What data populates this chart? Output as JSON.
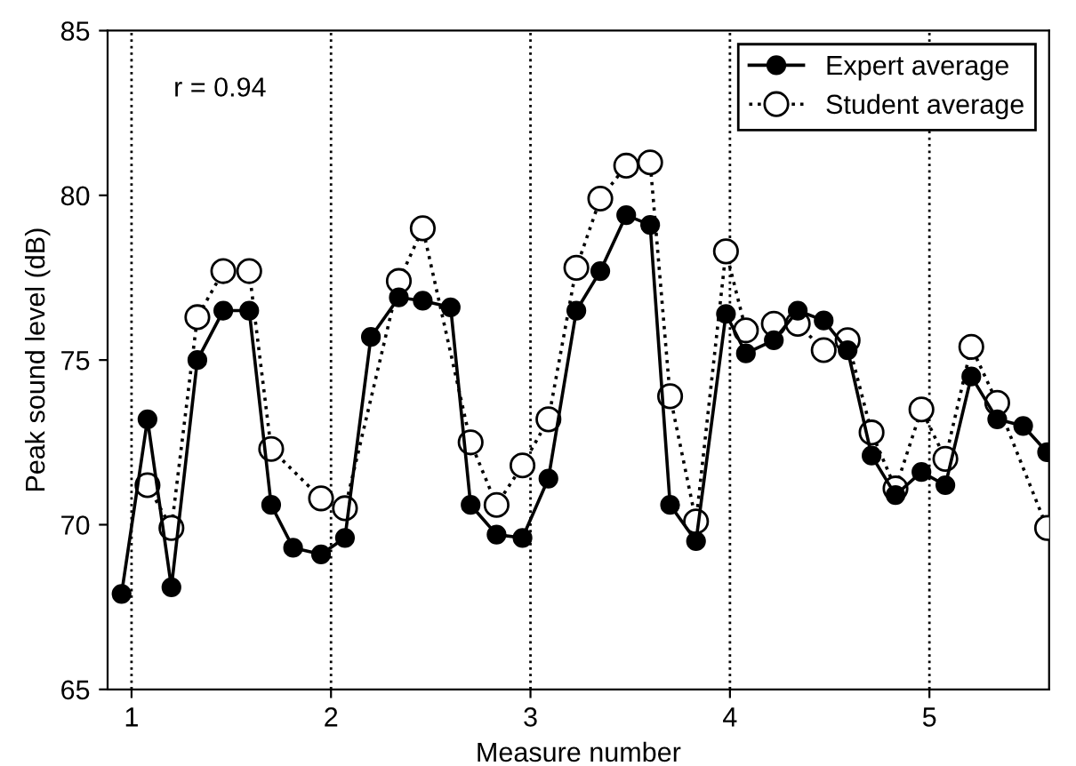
{
  "chart_data": {
    "type": "line",
    "xlabel": "Measure number",
    "ylabel": "Peak sound level (dB)",
    "annotations": [
      "r = 0.94"
    ],
    "series": [
      {
        "name": "Expert average",
        "color": "#000000",
        "marker": "circle",
        "line_style": "solid",
        "x": [
          0.95,
          1.08,
          1.2,
          1.33,
          1.46,
          1.59,
          1.7,
          1.81,
          1.95,
          2.07,
          2.2,
          2.34,
          2.46,
          2.6,
          2.7,
          2.83,
          2.96,
          3.09,
          3.23,
          3.35,
          3.48,
          3.6,
          3.7,
          3.83,
          3.98,
          4.08,
          4.22,
          4.34,
          4.47,
          4.59,
          4.71,
          4.83,
          4.96,
          5.08,
          5.21,
          5.34,
          5.47,
          5.59
        ],
        "values": [
          67.9,
          73.2,
          68.1,
          75.0,
          76.5,
          76.5,
          70.6,
          69.3,
          69.1,
          69.6,
          75.7,
          76.9,
          76.8,
          76.6,
          70.6,
          69.7,
          69.6,
          71.4,
          76.5,
          77.7,
          79.4,
          79.1,
          70.6,
          69.5,
          76.4,
          75.2,
          75.6,
          76.5,
          76.2,
          75.3,
          72.1,
          70.9,
          71.6,
          71.2,
          74.5,
          73.2,
          73.0,
          72.2
        ]
      },
      {
        "name": "Student average",
        "color": "#000000",
        "marker": "circle",
        "line_style": "dotted",
        "x": [
          1.08,
          1.2,
          1.33,
          1.46,
          1.59,
          1.7,
          1.95,
          2.07,
          2.34,
          2.46,
          2.7,
          2.83,
          2.96,
          3.09,
          3.23,
          3.35,
          3.48,
          3.6,
          3.7,
          3.83,
          3.98,
          4.08,
          4.22,
          4.34,
          4.47,
          4.59,
          4.71,
          4.83,
          4.96,
          5.08,
          5.21,
          5.34,
          5.59
        ],
        "values": [
          71.2,
          69.9,
          76.3,
          77.7,
          77.7,
          72.3,
          70.8,
          70.5,
          77.4,
          79.0,
          72.5,
          70.6,
          71.8,
          73.2,
          77.8,
          79.9,
          80.9,
          81.0,
          73.9,
          70.1,
          78.3,
          75.9,
          76.1,
          76.1,
          75.3,
          75.6,
          72.8,
          71.1,
          73.5,
          72.0,
          75.4,
          73.7,
          69.9
        ]
      }
    ],
    "xlim": [
      0.88,
      5.6
    ],
    "ylim": [
      65,
      85
    ],
    "xticks": [
      1,
      2,
      3,
      4,
      5
    ],
    "yticks": [
      65,
      70,
      75,
      80,
      85
    ],
    "grid": "x",
    "legend": "top right"
  }
}
